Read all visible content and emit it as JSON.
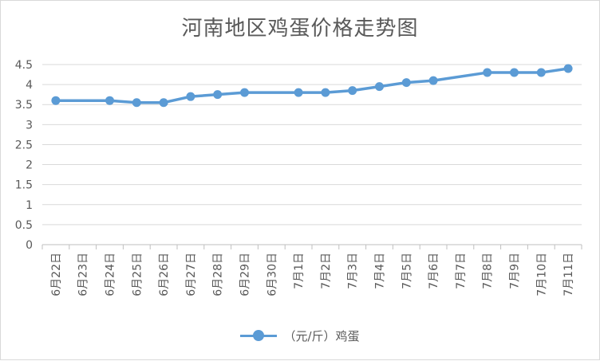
{
  "chart_data": {
    "type": "line",
    "title": "河南地区鸡蛋价格走势图",
    "xlabel": "",
    "ylabel": "",
    "categories": [
      "6月22日",
      "6月23日",
      "6月24日",
      "6月25日",
      "6月26日",
      "6月27日",
      "6月28日",
      "6月29日",
      "6月30日",
      "7月1日",
      "7月2日",
      "7月3日",
      "7月4日",
      "7月5日",
      "7月6日",
      "7月7日",
      "7月8日",
      "7月9日",
      "7月10日",
      "7月11日"
    ],
    "series": [
      {
        "name": "（元/斤）鸡蛋",
        "values": [
          3.6,
          null,
          3.6,
          3.55,
          3.55,
          3.7,
          3.75,
          3.8,
          null,
          3.8,
          3.8,
          3.85,
          3.95,
          4.05,
          4.1,
          null,
          4.3,
          4.3,
          4.3,
          4.4
        ],
        "color": "#5b9bd5"
      }
    ],
    "ylim": [
      0,
      4.5
    ],
    "yticks": [
      "0",
      "0.5",
      "1",
      "1.5",
      "2",
      "2.5",
      "3",
      "3.5",
      "4",
      "4.5"
    ],
    "grid": true,
    "legend_position": "bottom",
    "connect_gaps": true
  }
}
